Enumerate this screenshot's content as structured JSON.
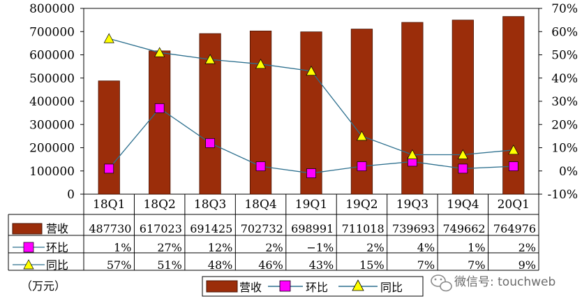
{
  "chart_data": {
    "type": "bar",
    "categories": [
      "18Q1",
      "18Q2",
      "18Q3",
      "18Q4",
      "19Q1",
      "19Q2",
      "19Q3",
      "19Q4",
      "20Q1"
    ],
    "series": [
      {
        "name": "营收",
        "type": "bar",
        "axis": "left",
        "values": [
          487730,
          617023,
          691425,
          702732,
          698991,
          711018,
          739693,
          749662,
          764976
        ],
        "labels": [
          "487730",
          "617023",
          "691425",
          "702732",
          "698991",
          "711018",
          "739693",
          "749662",
          "764976"
        ]
      },
      {
        "name": "环比",
        "type": "line",
        "axis": "right",
        "marker": "square",
        "values": [
          1,
          27,
          12,
          2,
          -1,
          2,
          4,
          1,
          2
        ],
        "labels": [
          "1%",
          "27%",
          "12%",
          "2%",
          "−1%",
          "2%",
          "4%",
          "1%",
          "2%"
        ]
      },
      {
        "name": "同比",
        "type": "line",
        "axis": "right",
        "marker": "triangle",
        "values": [
          57,
          51,
          48,
          46,
          43,
          15,
          7,
          7,
          9
        ],
        "labels": [
          "57%",
          "51%",
          "48%",
          "46%",
          "43%",
          "15%",
          "7%",
          "7%",
          "9%"
        ]
      }
    ],
    "ylim": [
      0,
      800000
    ],
    "y2lim": [
      -10,
      70
    ],
    "yticks": [
      "0",
      "100000",
      "200000",
      "300000",
      "400000",
      "500000",
      "600000",
      "700000",
      "800000"
    ],
    "y2ticks": [
      "-10%",
      "0%",
      "10%",
      "20%",
      "30%",
      "40%",
      "50%",
      "60%",
      "70%"
    ],
    "unit_label": "（万元）",
    "legend_position": "bottom-center",
    "data_table": true,
    "grid": false,
    "colors": {
      "bar": "#9b2d0a",
      "bar_edge": "#4a1404",
      "line": "#2c6f8e",
      "square": "#ff00ff",
      "triangle": "#ffff00"
    }
  },
  "watermark": "微信号: touchweb"
}
